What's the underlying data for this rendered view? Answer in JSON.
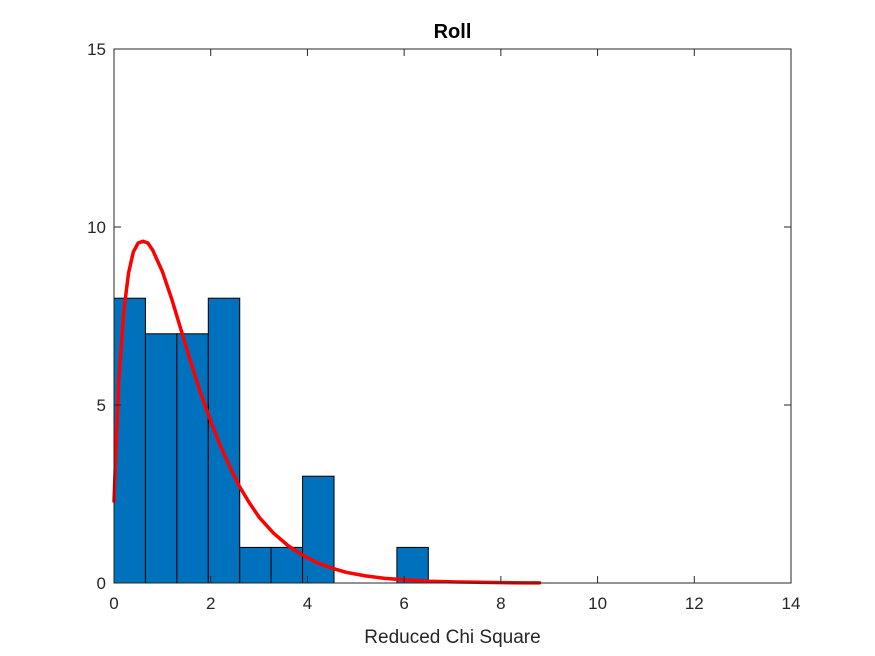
{
  "chart_data": {
    "type": "bar",
    "title": "Roll",
    "xlabel": "Reduced Chi Square",
    "ylabel": "",
    "xlim": [
      0,
      14
    ],
    "ylim": [
      0,
      15
    ],
    "xticks": [
      0,
      2,
      4,
      6,
      8,
      10,
      12,
      14
    ],
    "yticks": [
      0,
      5,
      10,
      15
    ],
    "grid": false,
    "bar_color": "#0072BD",
    "curve_color": "#FF0000",
    "histogram": {
      "bin_edges": [
        0,
        0.65,
        1.3,
        1.95,
        2.6,
        3.25,
        3.9,
        4.55,
        5.2,
        5.85,
        6.5
      ],
      "counts": [
        8,
        7,
        7,
        8,
        1,
        1,
        3,
        0,
        0,
        1
      ]
    },
    "series": [
      {
        "type": "line",
        "x": [
          0.0,
          0.05,
          0.1,
          0.2,
          0.3,
          0.4,
          0.5,
          0.6,
          0.7,
          0.8,
          1.0,
          1.2,
          1.4,
          1.6,
          1.8,
          2.0,
          2.2,
          2.4,
          2.6,
          2.8,
          3.0,
          3.3,
          3.6,
          3.9,
          4.2,
          4.5,
          4.8,
          5.2,
          5.6,
          6.0,
          6.5,
          7.0,
          7.5,
          8.0,
          8.5,
          8.8
        ],
        "y": [
          2.3,
          4.1,
          5.7,
          7.6,
          8.7,
          9.3,
          9.55,
          9.6,
          9.55,
          9.35,
          8.75,
          7.95,
          7.05,
          6.15,
          5.3,
          4.55,
          3.85,
          3.25,
          2.7,
          2.25,
          1.85,
          1.4,
          1.05,
          0.78,
          0.57,
          0.42,
          0.3,
          0.2,
          0.13,
          0.09,
          0.05,
          0.03,
          0.02,
          0.01,
          0.005,
          0.003
        ]
      }
    ]
  }
}
